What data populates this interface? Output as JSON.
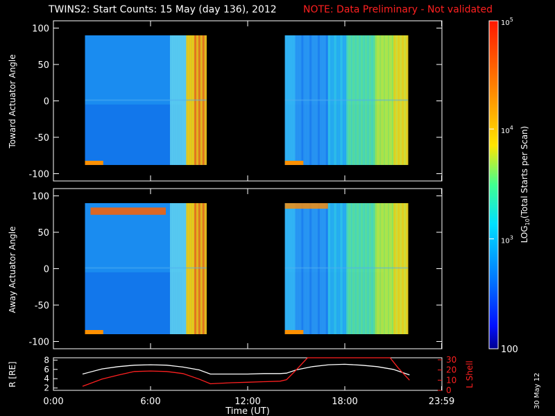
{
  "title": "TWINS2: Start Counts: 15 May (day 136), 2012",
  "note": "NOTE: Data Preliminary - Not validated",
  "date_stamp": "30 May 12",
  "chart_data": [
    {
      "type": "heatmap",
      "id": "toward",
      "ylabel": "Toward Actuator Angle",
      "ylim": [
        -110,
        110
      ],
      "yticks": [
        "100",
        "50",
        "0",
        "-50",
        "-100"
      ],
      "yticks_values": [
        100,
        50,
        0,
        -50,
        -100
      ],
      "grid": false,
      "data_intervals_hours": [
        [
          1.95,
          9.45
        ],
        [
          14.3,
          21.9
        ]
      ],
      "angle_range": [
        -88,
        90
      ]
    },
    {
      "type": "heatmap",
      "id": "away",
      "ylabel": "Away Actuator Angle",
      "ylim": [
        -110,
        110
      ],
      "yticks": [
        "100",
        "50",
        "0",
        "-50",
        "-100"
      ],
      "yticks_values": [
        100,
        50,
        0,
        -50,
        -100
      ],
      "grid": false,
      "data_intervals_hours": [
        [
          1.95,
          9.45
        ],
        [
          14.3,
          21.9
        ]
      ],
      "angle_range": [
        -90,
        90
      ]
    },
    {
      "type": "line",
      "id": "orbit",
      "xlabel": "Time (UT)",
      "ylabel_left": "R [RE]",
      "ylabel_right": "L Shell",
      "x_ticks": [
        "0:00",
        "6:00",
        "12:00",
        "18:00",
        "23:59"
      ],
      "x_ticks_values": [
        0,
        6,
        12,
        18,
        23.98
      ],
      "left_yticks": [
        "8",
        "6",
        "4",
        "2"
      ],
      "left_ylim": [
        1.5,
        8.5
      ],
      "right_yticks": [
        "30",
        "20",
        "10",
        "0"
      ],
      "right_ylim": [
        0,
        32
      ],
      "series": [
        {
          "axis": "left",
          "color": "#ffffff",
          "x": [
            1.8,
            3,
            4,
            5,
            6,
            7,
            8,
            9,
            9.7,
            11,
            12,
            13,
            14,
            14.4,
            15,
            16,
            17,
            18,
            19,
            20,
            21,
            22
          ],
          "y": [
            5.0,
            6.1,
            6.6,
            6.9,
            7.0,
            6.9,
            6.5,
            5.9,
            5.0,
            5.0,
            5.0,
            5.1,
            5.1,
            5.2,
            5.9,
            6.6,
            7.0,
            7.1,
            6.9,
            6.6,
            6.0,
            4.8
          ]
        },
        {
          "axis": "right",
          "color": "#ff2020",
          "x": [
            1.8,
            3,
            4,
            5,
            6,
            7,
            8,
            9,
            9.7,
            11,
            12,
            13,
            14,
            14.4,
            15,
            15.7,
            20.8,
            21.3,
            22
          ],
          "y": [
            4.0,
            11.0,
            15.0,
            18.5,
            19.0,
            18.5,
            16.5,
            11.0,
            6.5,
            7.5,
            8.0,
            8.5,
            9.0,
            10.5,
            20.0,
            32.0,
            32.0,
            22.0,
            10.0
          ]
        }
      ]
    }
  ],
  "colorbar": {
    "label": "LOG10(Total Starts per Scan)",
    "tick_labels": [
      "10^5",
      "10^4",
      "10^3",
      "100"
    ],
    "colors": [
      "#ffffff",
      "#ff0000",
      "#ff8000",
      "#ffff00",
      "#00ff80",
      "#00ffff",
      "#0080ff",
      "#0000ff",
      "#000080"
    ]
  }
}
